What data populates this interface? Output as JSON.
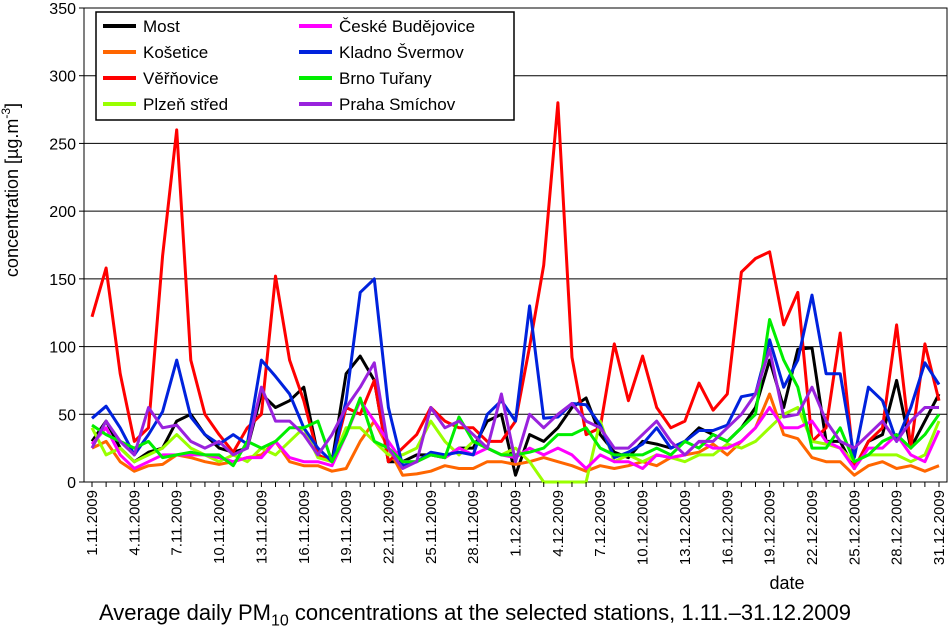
{
  "chart_data": {
    "type": "line",
    "xlabel": "date",
    "ylabel": "concentration [µg.m⁻³]",
    "ylabel_parts": {
      "main": "concentration [µg.m",
      "sup": "-3",
      "close": "]"
    },
    "caption": {
      "before": "Average daily PM",
      "sub": "10",
      "after": " concentrations at the selected stations, 1.11.–31.12.2009"
    },
    "ylim": [
      0,
      350
    ],
    "yticks": [
      "0",
      "50",
      "100",
      "150",
      "200",
      "250",
      "300",
      "350"
    ],
    "grid": true,
    "legend_position": "top-left",
    "x": [
      "1.11.2009",
      "2.11.2009",
      "3.11.2009",
      "4.11.2009",
      "5.11.2009",
      "6.11.2009",
      "7.11.2009",
      "8.11.2009",
      "9.11.2009",
      "10.11.2009",
      "11.11.2009",
      "12.11.2009",
      "13.11.2009",
      "14.11.2009",
      "15.11.2009",
      "16.11.2009",
      "17.11.2009",
      "18.11.2009",
      "19.11.2009",
      "20.11.2009",
      "21.11.2009",
      "22.11.2009",
      "23.11.2009",
      "24.11.2009",
      "25.11.2009",
      "26.11.2009",
      "27.11.2009",
      "28.11.2009",
      "29.11.2009",
      "30.11.2009",
      "1.12.2009",
      "2.12.2009",
      "3.12.2009",
      "4.12.2009",
      "5.12.2009",
      "6.12.2009",
      "7.12.2009",
      "8.12.2009",
      "9.12.2009",
      "10.12.2009",
      "11.12.2009",
      "12.12.2009",
      "13.12.2009",
      "14.12.2009",
      "15.12.2009",
      "16.12.2009",
      "17.12.2009",
      "18.12.2009",
      "19.12.2009",
      "20.12.2009",
      "21.12.2009",
      "22.12.2009",
      "23.12.2009",
      "24.12.2009",
      "25.12.2009",
      "26.12.2009",
      "27.12.2009",
      "28.12.2009",
      "29.12.2009",
      "30.12.2009",
      "31.12.2009"
    ],
    "xtick_labels": [
      "1.11.2009",
      "4.11.2009",
      "7.11.2009",
      "10.11.2009",
      "13.11.2009",
      "16.11.2009",
      "19.11.2009",
      "22.11.2009",
      "25.11.2009",
      "28.11.2009",
      "1.12.2009",
      "4.12.2009",
      "7.12.2009",
      "10.12.2009",
      "13.12.2009",
      "16.12.2009",
      "19.12.2009",
      "22.12.2009",
      "25.12.2009",
      "28.12.2009",
      "31.12.2009"
    ],
    "series": [
      {
        "name": "Most",
        "color": "#000000",
        "values": [
          30,
          45,
          25,
          15,
          22,
          25,
          45,
          50,
          35,
          25,
          22,
          25,
          65,
          55,
          60,
          70,
          20,
          15,
          80,
          93,
          75,
          15,
          15,
          20,
          20,
          18,
          25,
          25,
          45,
          50,
          5,
          35,
          30,
          40,
          55,
          62,
          35,
          22,
          18,
          30,
          28,
          25,
          30,
          40,
          35,
          30,
          40,
          55,
          90,
          55,
          98,
          99,
          30,
          30,
          10,
          30,
          35,
          75,
          25,
          45,
          65
        ]
      },
      {
        "name": "Košetice",
        "color": "#FF6600",
        "values": [
          25,
          30,
          15,
          8,
          12,
          13,
          20,
          18,
          15,
          13,
          15,
          18,
          20,
          30,
          15,
          12,
          12,
          8,
          10,
          30,
          45,
          25,
          5,
          6,
          8,
          12,
          10,
          10,
          15,
          15,
          13,
          15,
          18,
          15,
          12,
          8,
          12,
          10,
          12,
          15,
          12,
          18,
          20,
          22,
          28,
          20,
          30,
          40,
          65,
          35,
          32,
          18,
          15,
          15,
          5,
          12,
          15,
          10,
          12,
          8,
          12
        ]
      },
      {
        "name": "Věřňovice",
        "color": "#FF0000",
        "values": [
          122,
          158,
          80,
          30,
          40,
          167,
          260,
          90,
          50,
          35,
          22,
          40,
          50,
          152,
          90,
          60,
          20,
          15,
          55,
          50,
          75,
          15,
          25,
          35,
          55,
          45,
          40,
          40,
          30,
          30,
          45,
          100,
          160,
          280,
          92,
          35,
          40,
          102,
          60,
          93,
          55,
          40,
          45,
          73,
          53,
          65,
          155,
          165,
          170,
          116,
          140,
          30,
          40,
          110,
          10,
          30,
          40,
          116,
          25,
          102,
          60
        ]
      },
      {
        "name": "Plzeň střed",
        "color": "#99FF00",
        "values": [
          40,
          20,
          25,
          15,
          20,
          25,
          35,
          25,
          20,
          15,
          20,
          15,
          25,
          20,
          30,
          40,
          18,
          15,
          40,
          40,
          30,
          20,
          20,
          25,
          45,
          30,
          20,
          30,
          25,
          20,
          25,
          15,
          0,
          0,
          0,
          0,
          45,
          15,
          20,
          15,
          20,
          18,
          15,
          20,
          20,
          28,
          25,
          30,
          40,
          50,
          55,
          30,
          28,
          25,
          15,
          20,
          20,
          20,
          15,
          20,
          45
        ]
      },
      {
        "name": "České Budějovice",
        "color": "#FF00FF",
        "values": [
          28,
          40,
          20,
          10,
          15,
          20,
          20,
          20,
          20,
          18,
          15,
          18,
          18,
          30,
          18,
          15,
          15,
          12,
          35,
          60,
          45,
          30,
          15,
          15,
          20,
          18,
          25,
          20,
          25,
          20,
          18,
          25,
          20,
          25,
          20,
          10,
          20,
          15,
          15,
          10,
          20,
          18,
          20,
          30,
          25,
          25,
          30,
          40,
          55,
          40,
          40,
          45,
          30,
          25,
          10,
          25,
          25,
          35,
          20,
          15,
          38
        ]
      },
      {
        "name": "Kladno Švermov",
        "color": "#0022DD",
        "values": [
          47,
          56,
          40,
          20,
          35,
          52,
          90,
          48,
          35,
          28,
          35,
          28,
          90,
          78,
          65,
          40,
          25,
          15,
          60,
          140,
          150,
          55,
          12,
          15,
          22,
          20,
          22,
          20,
          50,
          60,
          45,
          130,
          47,
          48,
          58,
          57,
          42,
          18,
          22,
          28,
          40,
          25,
          30,
          38,
          38,
          42,
          63,
          65,
          105,
          70,
          90,
          138,
          80,
          80,
          18,
          70,
          60,
          30,
          55,
          88,
          72
        ]
      },
      {
        "name": "Brno Tuřany",
        "color": "#00EE00",
        "values": [
          42,
          35,
          30,
          25,
          30,
          18,
          20,
          22,
          20,
          20,
          12,
          30,
          25,
          30,
          40,
          40,
          45,
          15,
          35,
          62,
          30,
          25,
          15,
          15,
          20,
          18,
          48,
          30,
          25,
          20,
          20,
          22,
          25,
          35,
          35,
          40,
          25,
          20,
          20,
          20,
          25,
          20,
          30,
          25,
          35,
          30,
          40,
          50,
          120,
          90,
          70,
          25,
          25,
          40,
          15,
          20,
          30,
          35,
          25,
          35,
          50
        ]
      },
      {
        "name": "Praha Smíchov",
        "color": "#9922DD",
        "values": [
          25,
          45,
          30,
          20,
          55,
          40,
          42,
          30,
          25,
          30,
          20,
          25,
          70,
          45,
          45,
          35,
          20,
          35,
          55,
          70,
          88,
          25,
          10,
          15,
          55,
          40,
          45,
          35,
          25,
          65,
          15,
          50,
          40,
          50,
          58,
          45,
          40,
          25,
          25,
          35,
          45,
          30,
          20,
          30,
          30,
          40,
          50,
          65,
          98,
          48,
          50,
          70,
          45,
          30,
          25,
          35,
          45,
          30,
          45,
          55,
          55
        ]
      }
    ]
  }
}
